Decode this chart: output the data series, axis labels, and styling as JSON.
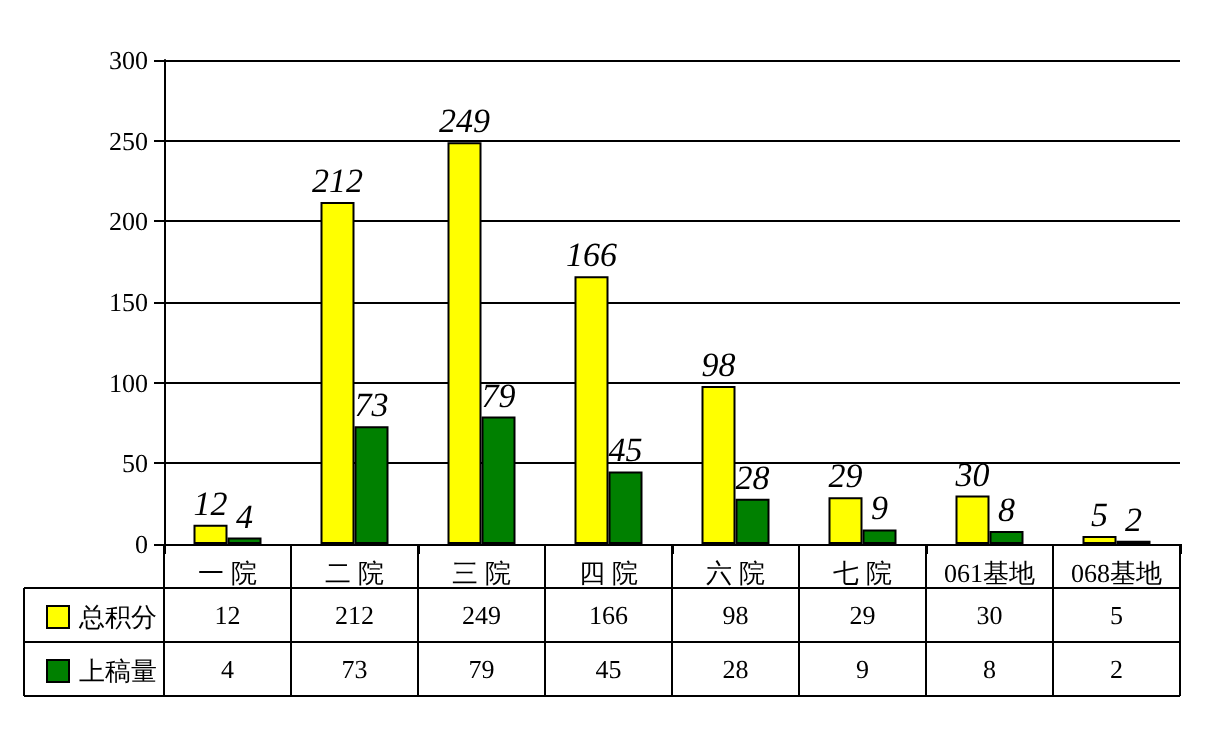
{
  "chart_data": {
    "type": "bar",
    "categories": [
      "一 院",
      "二 院",
      "三 院",
      "四 院",
      "六 院",
      "七 院",
      "061基地",
      "068基地"
    ],
    "series": [
      {
        "name": "总积分",
        "color": "#ffff00",
        "values": [
          12,
          212,
          249,
          166,
          98,
          29,
          30,
          5
        ]
      },
      {
        "name": "上稿量",
        "color": "#008000",
        "values": [
          4,
          73,
          79,
          45,
          28,
          9,
          8,
          2
        ]
      }
    ],
    "ylim": [
      0,
      300
    ],
    "yticks": [
      0,
      50,
      100,
      150,
      200,
      250,
      300
    ],
    "grid": "y",
    "legend": "bottom left",
    "data_labels": true,
    "annotations": [
      "12",
      "212",
      "249",
      "166",
      "98",
      "29",
      "30",
      "5",
      "4",
      "73",
      "79",
      "45",
      "28",
      "9",
      "8",
      "2"
    ]
  }
}
